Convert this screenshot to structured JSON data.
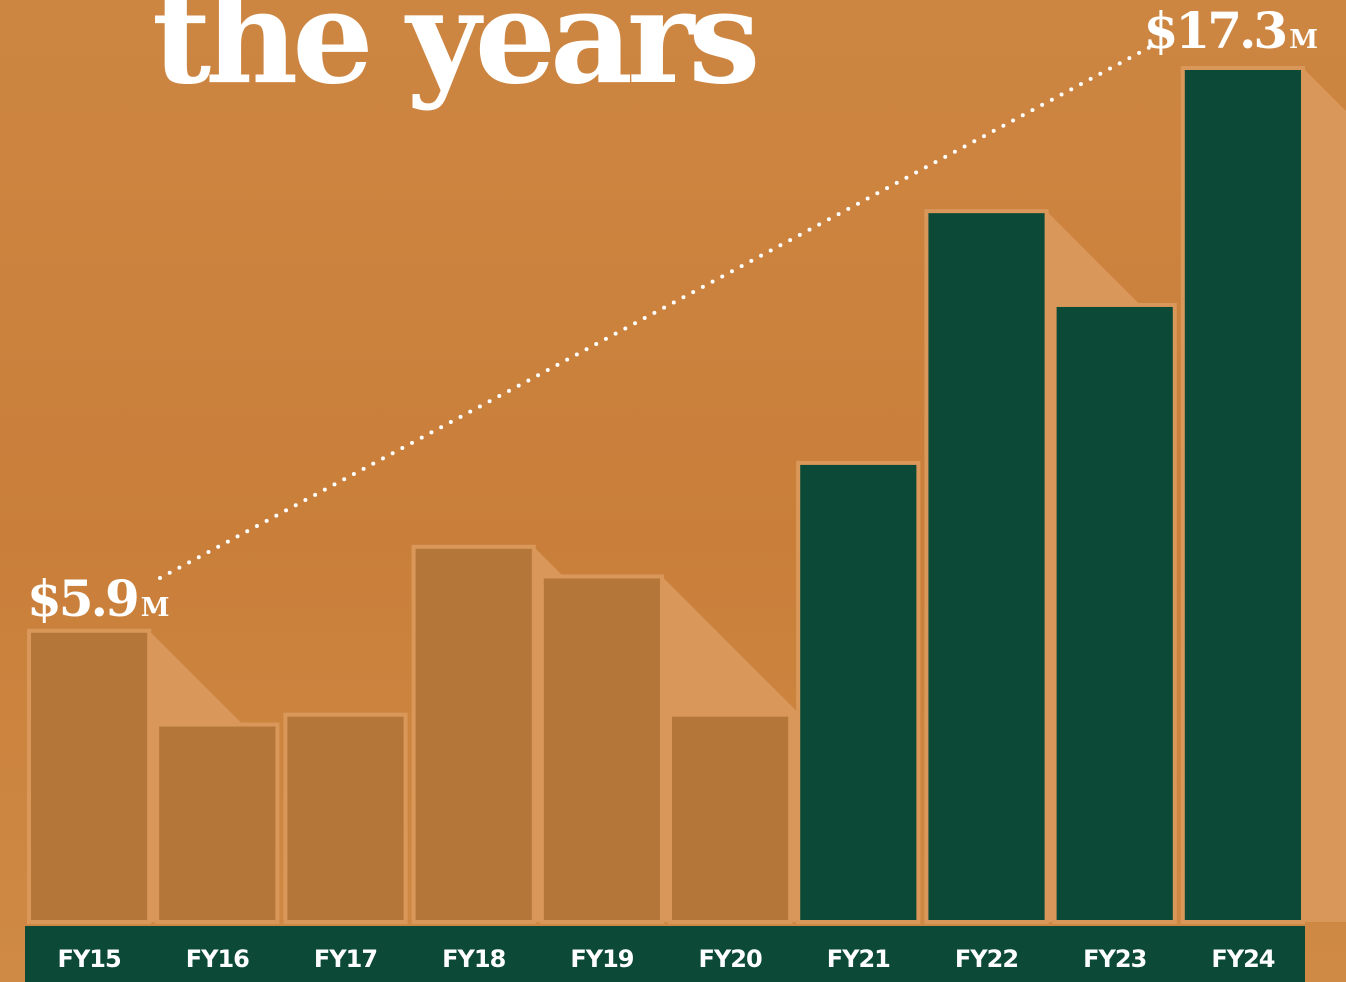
{
  "chart_data": {
    "type": "bar",
    "title": "the years",
    "categories": [
      "FY15",
      "FY16",
      "FY17",
      "FY18",
      "FY19",
      "FY20",
      "FY21",
      "FY22",
      "FY23",
      "FY24"
    ],
    "values": [
      5.9,
      4.0,
      4.2,
      7.6,
      7.0,
      4.2,
      9.3,
      14.4,
      12.5,
      17.3
    ],
    "value_labels": [
      "$5.9M",
      null,
      null,
      null,
      null,
      null,
      null,
      null,
      null,
      "$17.3M"
    ],
    "colors": [
      "#b5763a",
      "#b5763a",
      "#b5763a",
      "#b5763a",
      "#b5763a",
      "#b5763a",
      "#0c4a37",
      "#0c4a37",
      "#0c4a37",
      "#0c4a37"
    ]
  }
}
